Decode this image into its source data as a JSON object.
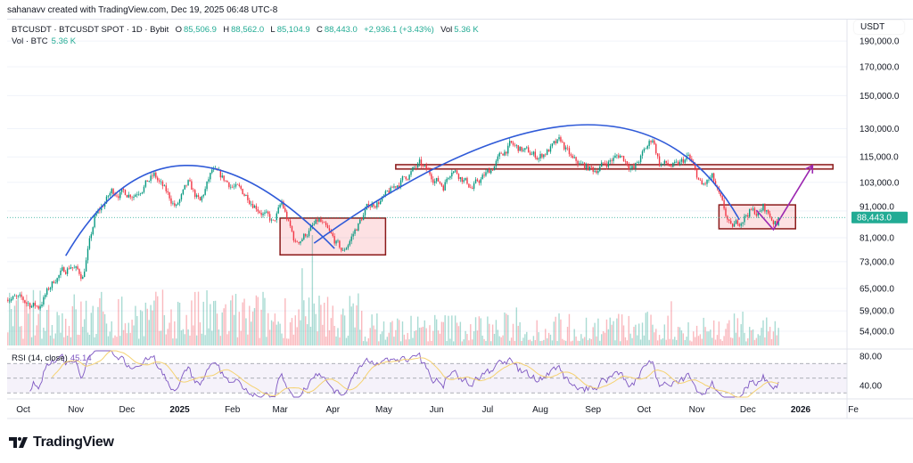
{
  "header": {
    "attribution": "sahanavv created with TradingView.com, Dec 19, 2025 06:48 UTC-8"
  },
  "legend": {
    "symbol": "BTCUSDT · BTCUSDT SPOT · 1D · Bybit",
    "o_label": "O",
    "o": "85,506.9",
    "h_label": "H",
    "h": "88,562.0",
    "l_label": "L",
    "l": "85,104.9",
    "c_label": "C",
    "c": "88,443.0",
    "change": "+2,936.1 (+3.43%)",
    "vol_label": "Vol",
    "vol": "5.36 K"
  },
  "volume_legend": {
    "label": "Vol · BTC",
    "value": "5.36 K"
  },
  "rsi_legend": {
    "label": "RSI (14, close)",
    "value": "45.14"
  },
  "price_axis": {
    "currency": "USDT",
    "ticks": [
      {
        "label": "190,000.0",
        "value": 190000
      },
      {
        "label": "170,000.0",
        "value": 170000
      },
      {
        "label": "150,000.0",
        "value": 150000
      },
      {
        "label": "130,000.0",
        "value": 130000
      },
      {
        "label": "115,000.0",
        "value": 115000
      },
      {
        "label": "103,000.0",
        "value": 103000
      },
      {
        "label": "91,000.0",
        "value": 91000
      },
      {
        "label": "81,000.0",
        "value": 81000
      },
      {
        "label": "73,000.0",
        "value": 73000
      },
      {
        "label": "65,000.0",
        "value": 65000
      },
      {
        "label": "59,000.0",
        "value": 59000
      },
      {
        "label": "54,000.0",
        "value": 54000
      }
    ],
    "last_price": "88,443.0"
  },
  "rsi_axis": {
    "ticks": [
      {
        "label": "80.00",
        "value": 80
      },
      {
        "label": "40.00",
        "value": 40
      }
    ]
  },
  "time_axis": {
    "ticks": [
      {
        "label": "Oct",
        "date": "2024-10-01"
      },
      {
        "label": "Nov",
        "date": "2024-11-01"
      },
      {
        "label": "Dec",
        "date": "2024-12-01"
      },
      {
        "label": "2025",
        "date": "2025-01-01",
        "bold": true
      },
      {
        "label": "Feb",
        "date": "2025-02-01"
      },
      {
        "label": "Mar",
        "date": "2025-03-01"
      },
      {
        "label": "Apr",
        "date": "2025-04-01"
      },
      {
        "label": "May",
        "date": "2025-05-01"
      },
      {
        "label": "Jun",
        "date": "2025-06-01"
      },
      {
        "label": "Jul",
        "date": "2025-07-01"
      },
      {
        "label": "Aug",
        "date": "2025-08-01"
      },
      {
        "label": "Sep",
        "date": "2025-09-01"
      },
      {
        "label": "Oct",
        "date": "2025-10-01"
      },
      {
        "label": "Nov",
        "date": "2025-11-01"
      },
      {
        "label": "Dec",
        "date": "2025-12-01"
      },
      {
        "label": "2026",
        "date": "2026-01-01",
        "bold": true
      },
      {
        "label": "Fe",
        "date": "2026-02-01"
      }
    ]
  },
  "brand": {
    "name": "TradingView"
  },
  "colors": {
    "up": "#089981",
    "down": "#f23645",
    "rsi": "#7e57c2",
    "rsi_ma": "#f5d271",
    "arc": "#2f5ad8",
    "projection": "#9c27b0",
    "zone": "#8b1a1a",
    "last_price": "#22ab94"
  },
  "chart_data": {
    "type": "candlestick",
    "interval": "1D",
    "scale": "log",
    "ylim": [
      52000,
      200000
    ],
    "key_closes": [
      {
        "date": "2024-09-21",
        "close": 63000
      },
      {
        "date": "2024-10-01",
        "close": 61500
      },
      {
        "date": "2024-10-10",
        "close": 60000
      },
      {
        "date": "2024-10-20",
        "close": 68000
      },
      {
        "date": "2024-10-29",
        "close": 72000
      },
      {
        "date": "2024-11-05",
        "close": 68500
      },
      {
        "date": "2024-11-12",
        "close": 88000
      },
      {
        "date": "2024-11-22",
        "close": 99000
      },
      {
        "date": "2024-12-05",
        "close": 98000
      },
      {
        "date": "2024-12-17",
        "close": 106000
      },
      {
        "date": "2024-12-30",
        "close": 92500
      },
      {
        "date": "2025-01-06",
        "close": 102000
      },
      {
        "date": "2025-01-13",
        "close": 94000
      },
      {
        "date": "2025-01-20",
        "close": 108000
      },
      {
        "date": "2025-01-31",
        "close": 102000
      },
      {
        "date": "2025-02-10",
        "close": 97000
      },
      {
        "date": "2025-02-25",
        "close": 86000
      },
      {
        "date": "2025-03-02",
        "close": 94000
      },
      {
        "date": "2025-03-10",
        "close": 79000
      },
      {
        "date": "2025-03-24",
        "close": 87000
      },
      {
        "date": "2025-04-07",
        "close": 76000
      },
      {
        "date": "2025-04-22",
        "close": 93000
      },
      {
        "date": "2025-05-01",
        "close": 96000
      },
      {
        "date": "2025-05-10",
        "close": 103000
      },
      {
        "date": "2025-05-22",
        "close": 111000
      },
      {
        "date": "2025-06-05",
        "close": 101500
      },
      {
        "date": "2025-06-10",
        "close": 110000
      },
      {
        "date": "2025-06-22",
        "close": 100500
      },
      {
        "date": "2025-07-03",
        "close": 109000
      },
      {
        "date": "2025-07-10",
        "close": 117000
      },
      {
        "date": "2025-07-14",
        "close": 121000
      },
      {
        "date": "2025-07-31",
        "close": 115000
      },
      {
        "date": "2025-08-13",
        "close": 123000
      },
      {
        "date": "2025-08-20",
        "close": 113000
      },
      {
        "date": "2025-09-01",
        "close": 108500
      },
      {
        "date": "2025-09-17",
        "close": 116000
      },
      {
        "date": "2025-09-25",
        "close": 109000
      },
      {
        "date": "2025-10-06",
        "close": 125000
      },
      {
        "date": "2025-10-10",
        "close": 112000
      },
      {
        "date": "2025-10-20",
        "close": 110000
      },
      {
        "date": "2025-10-27",
        "close": 115000
      },
      {
        "date": "2025-11-04",
        "close": 101000
      },
      {
        "date": "2025-11-10",
        "close": 105000
      },
      {
        "date": "2025-11-21",
        "close": 84000
      },
      {
        "date": "2025-12-02",
        "close": 91000
      },
      {
        "date": "2025-12-08",
        "close": 90000
      },
      {
        "date": "2025-12-10",
        "close": 92500
      },
      {
        "date": "2025-12-18",
        "close": 85500
      },
      {
        "date": "2025-12-19",
        "close": 88443
      }
    ],
    "last_candle": {
      "date": "2025-12-19",
      "open": 85506.9,
      "high": 88562.0,
      "low": 85104.9,
      "close": 88443.0
    },
    "rsi": {
      "period": 14,
      "source": "close",
      "last": 45.14,
      "levels": [
        70,
        50,
        30
      ]
    },
    "annotations": {
      "arcs": [
        {
          "start": {
            "date": "2024-10-26",
            "price": 74900
          },
          "peak": {
            "date": "2025-01-04",
            "price": 110800
          },
          "end": {
            "date": "2025-04-02",
            "price": 77300
          }
        },
        {
          "start": {
            "date": "2025-03-21",
            "price": 79100
          },
          "peak": {
            "date": "2025-08-22",
            "price": 132000
          },
          "end": {
            "date": "2025-11-26",
            "price": 87600
          }
        }
      ],
      "zones": [
        {
          "from": "2025-03-01",
          "to": "2025-05-02",
          "top": 88200,
          "bottom": 75200
        },
        {
          "from": "2025-11-14",
          "to": "2025-12-29",
          "top": 93400,
          "bottom": 84200
        }
      ],
      "resistance_band": {
        "from": "2025-05-08",
        "to": "2026-01-20",
        "top": 111200,
        "bottom": 109100
      },
      "projection": [
        {
          "date": "2025-12-06",
          "price": 91300
        },
        {
          "date": "2025-12-16",
          "price": 83900
        },
        {
          "date": "2026-01-08",
          "price": 110800
        }
      ]
    }
  }
}
